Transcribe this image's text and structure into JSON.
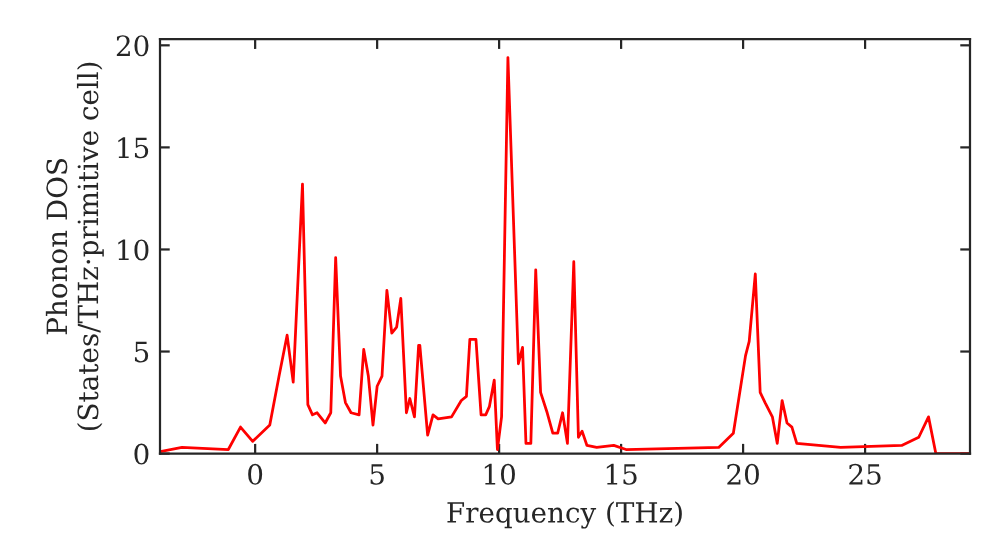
{
  "chart_data": {
    "type": "line",
    "xlabel": "Frequency (THz)",
    "ylabel": "Phonon DOS\n(States/THz·primitive cell)",
    "xlim": [
      -3.9,
      29.3
    ],
    "ylim": [
      0,
      20.3
    ],
    "xticks": [
      0,
      5,
      10,
      15,
      20,
      25
    ],
    "yticks": [
      0,
      5,
      10,
      15,
      20
    ],
    "grid": false,
    "legend": false,
    "series": [
      {
        "color": "#ff0000",
        "x": [
          -3.9,
          -3.0,
          -1.1,
          -0.6,
          -0.1,
          0.6,
          0.98,
          1.31,
          1.56,
          1.94,
          2.16,
          2.35,
          2.54,
          2.87,
          3.1,
          3.3,
          3.5,
          3.7,
          3.93,
          4.26,
          4.45,
          4.64,
          4.83,
          5.0,
          5.2,
          5.4,
          5.6,
          5.8,
          5.97,
          6.2,
          6.34,
          6.53,
          6.7,
          6.75,
          7.07,
          7.29,
          7.5,
          8.05,
          8.45,
          8.66,
          8.8,
          9.05,
          9.26,
          9.45,
          9.6,
          9.8,
          9.93,
          10.1,
          10.36,
          10.63,
          10.79,
          10.96,
          11.1,
          11.3,
          11.5,
          11.7,
          11.97,
          12.2,
          12.4,
          12.6,
          12.8,
          13.06,
          13.25,
          13.4,
          13.6,
          14.0,
          14.7,
          15.2,
          19.0,
          19.6,
          20.1,
          20.25,
          20.5,
          20.7,
          20.9,
          21.2,
          21.4,
          21.6,
          21.8,
          22.0,
          22.2,
          24.0,
          26.5,
          27.2,
          27.6,
          27.9,
          29.3
        ],
        "values": [
          0.1,
          0.3,
          0.2,
          1.3,
          0.6,
          1.4,
          3.8,
          5.8,
          3.5,
          13.2,
          2.4,
          1.9,
          2.0,
          1.5,
          2.0,
          9.6,
          3.8,
          2.5,
          2.0,
          1.9,
          5.1,
          3.8,
          1.4,
          3.3,
          3.8,
          8.0,
          5.9,
          6.2,
          7.6,
          2.0,
          2.7,
          1.8,
          5.3,
          5.3,
          0.9,
          1.9,
          1.7,
          1.8,
          2.6,
          2.8,
          5.6,
          5.6,
          1.9,
          1.9,
          2.3,
          3.6,
          0.2,
          1.8,
          19.4,
          10.0,
          4.4,
          5.2,
          0.5,
          0.5,
          9.0,
          3.0,
          2.0,
          1.0,
          1.0,
          2.0,
          0.5,
          9.4,
          0.8,
          1.1,
          0.4,
          0.3,
          0.4,
          0.2,
          0.3,
          1.0,
          4.8,
          5.5,
          8.8,
          3.0,
          2.5,
          1.8,
          0.5,
          2.6,
          1.5,
          1.3,
          0.5,
          0.3,
          0.4,
          0.8,
          1.8,
          0.0,
          0.0
        ]
      }
    ]
  }
}
